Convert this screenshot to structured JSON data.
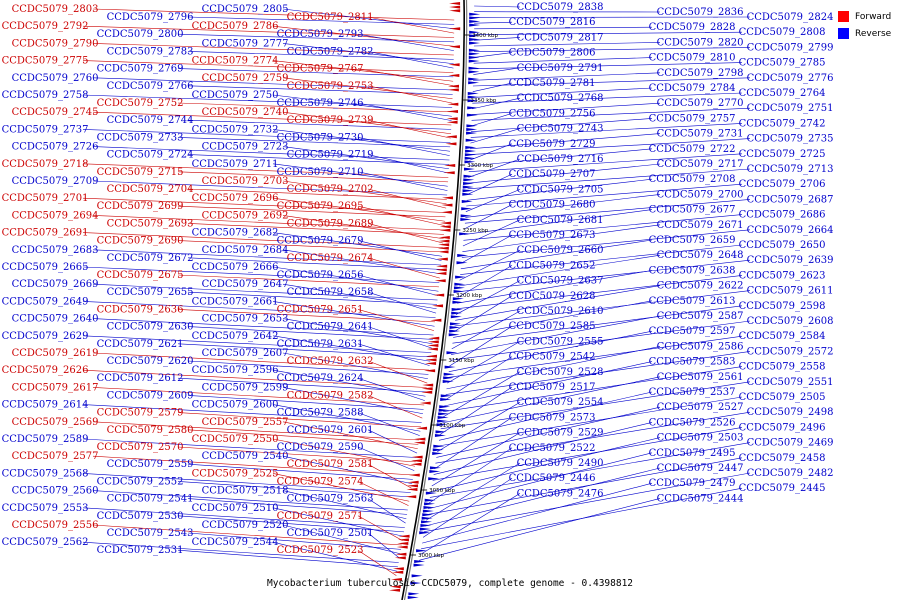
{
  "caption": "Mycobacterium tuberculosis CCDC5079, complete genome - 0.4398812",
  "legend": [
    {
      "label": "Forward",
      "color": "#ff0000"
    },
    {
      "label": "Reverse",
      "color": "#0000ff"
    }
  ],
  "colors": {
    "forward": "#cc0000",
    "reverse": "#0000cc",
    "backbone": "#000000"
  },
  "axis_ticks": [
    "3400 kbp",
    "3350 kbp",
    "3300 kbp",
    "3250 kbp",
    "3200 kbp",
    "3150 kbp",
    "3100 kbp",
    "3050 kbp",
    "3000 kbp"
  ],
  "left_labels": [
    {
      "t": "CCDC5079_2803",
      "s": "f"
    },
    {
      "t": "CCDC5079_2796",
      "s": "r"
    },
    {
      "t": "CCDC5079_2805",
      "s": "r"
    },
    {
      "t": "CCDC5079_2811",
      "s": "f"
    },
    {
      "t": "CCDC5079_2792",
      "s": "f"
    },
    {
      "t": "CCDC5079_2800",
      "s": "r"
    },
    {
      "t": "CCDC5079_2786",
      "s": "f"
    },
    {
      "t": "CCDC5079_2793",
      "s": "r"
    },
    {
      "t": "CCDC5079_2790",
      "s": "f"
    },
    {
      "t": "CCDC5079_2783",
      "s": "r"
    },
    {
      "t": "CCDC5079_2777",
      "s": "r"
    },
    {
      "t": "CCDC5079_2782",
      "s": "r"
    },
    {
      "t": "CCDC5079_2775",
      "s": "f"
    },
    {
      "t": "CCDC5079_2769",
      "s": "r"
    },
    {
      "t": "CCDC5079_2774",
      "s": "f"
    },
    {
      "t": "CCDC5079_2767",
      "s": "f"
    },
    {
      "t": "CCDC5079_2760",
      "s": "r"
    },
    {
      "t": "CCDC5079_2766",
      "s": "r"
    },
    {
      "t": "CCDC5079_2759",
      "s": "f"
    },
    {
      "t": "CCDC5079_2753",
      "s": "f"
    },
    {
      "t": "CCDC5079_2758",
      "s": "r"
    },
    {
      "t": "CCDC5079_2752",
      "s": "f"
    },
    {
      "t": "CCDC5079_2750",
      "s": "r"
    },
    {
      "t": "CCDC5079_2746",
      "s": "r"
    },
    {
      "t": "CCDC5079_2745",
      "s": "f"
    },
    {
      "t": "CCDC5079_2744",
      "s": "r"
    },
    {
      "t": "CCDC5079_2740",
      "s": "f"
    },
    {
      "t": "CCDC5079_2739",
      "s": "f"
    },
    {
      "t": "CCDC5079_2737",
      "s": "r"
    },
    {
      "t": "CCDC5079_2733",
      "s": "r"
    },
    {
      "t": "CCDC5079_2732",
      "s": "r"
    },
    {
      "t": "CCDC5079_2730",
      "s": "r"
    },
    {
      "t": "CCDC5079_2726",
      "s": "r"
    },
    {
      "t": "CCDC5079_2724",
      "s": "r"
    },
    {
      "t": "CCDC5079_2723",
      "s": "r"
    },
    {
      "t": "CCDC5079_2719",
      "s": "r"
    },
    {
      "t": "CCDC5079_2718",
      "s": "f"
    },
    {
      "t": "CCDC5079_2715",
      "s": "f"
    },
    {
      "t": "CCDC5079_2711",
      "s": "r"
    },
    {
      "t": "CCDC5079_2710",
      "s": "r"
    },
    {
      "t": "CCDC5079_2709",
      "s": "r"
    },
    {
      "t": "CCDC5079_2704",
      "s": "f"
    },
    {
      "t": "CCDC5079_2703",
      "s": "f"
    },
    {
      "t": "CCDC5079_2702",
      "s": "f"
    },
    {
      "t": "CCDC5079_2701",
      "s": "f"
    },
    {
      "t": "CCDC5079_2699",
      "s": "f"
    },
    {
      "t": "CCDC5079_2696",
      "s": "f"
    },
    {
      "t": "CCDC5079_2695",
      "s": "f"
    },
    {
      "t": "CCDC5079_2694",
      "s": "f"
    },
    {
      "t": "CCDC5079_2693",
      "s": "f"
    },
    {
      "t": "CCDC5079_2692",
      "s": "f"
    },
    {
      "t": "CCDC5079_2689",
      "s": "f"
    },
    {
      "t": "CCDC5079_2691",
      "s": "f"
    },
    {
      "t": "CCDC5079_2690",
      "s": "f"
    },
    {
      "t": "CCDC5079_2682",
      "s": "r"
    },
    {
      "t": "CCDC5079_2679",
      "s": "r"
    },
    {
      "t": "CCDC5079_2683",
      "s": "r"
    },
    {
      "t": "CCDC5079_2672",
      "s": "r"
    },
    {
      "t": "CCDC5079_2684",
      "s": "r"
    },
    {
      "t": "CCDC5079_2674",
      "s": "f"
    },
    {
      "t": "CCDC5079_2665",
      "s": "r"
    },
    {
      "t": "CCDC5079_2675",
      "s": "f"
    },
    {
      "t": "CCDC5079_2666",
      "s": "r"
    },
    {
      "t": "CCDC5079_2656",
      "s": "r"
    },
    {
      "t": "CCDC5079_2669",
      "s": "r"
    },
    {
      "t": "CCDC5079_2655",
      "s": "r"
    },
    {
      "t": "CCDC5079_2647",
      "s": "r"
    },
    {
      "t": "CCDC5079_2658",
      "s": "r"
    },
    {
      "t": "CCDC5079_2649",
      "s": "r"
    },
    {
      "t": "CCDC5079_2636",
      "s": "f"
    },
    {
      "t": "CCDC5079_2661",
      "s": "r"
    },
    {
      "t": "CCDC5079_2651",
      "s": "f"
    },
    {
      "t": "CCDC5079_2640",
      "s": "r"
    },
    {
      "t": "CCDC5079_2630",
      "s": "r"
    },
    {
      "t": "CCDC5079_2653",
      "s": "r"
    },
    {
      "t": "CCDC5079_2641",
      "s": "r"
    },
    {
      "t": "CCDC5079_2629",
      "s": "r"
    },
    {
      "t": "CCDC5079_2621",
      "s": "r"
    },
    {
      "t": "CCDC5079_2642",
      "s": "r"
    },
    {
      "t": "CCDC5079_2631",
      "s": "r"
    },
    {
      "t": "CCDC5079_2619",
      "s": "f"
    },
    {
      "t": "CCDC5079_2620",
      "s": "r"
    },
    {
      "t": "CCDC5079_2607",
      "s": "r"
    },
    {
      "t": "CCDC5079_2632",
      "s": "f"
    },
    {
      "t": "CCDC5079_2626",
      "s": "f"
    },
    {
      "t": "CCDC5079_2612",
      "s": "r"
    },
    {
      "t": "CCDC5079_2596",
      "s": "r"
    },
    {
      "t": "CCDC5079_2624",
      "s": "r"
    },
    {
      "t": "CCDC5079_2617",
      "s": "f"
    },
    {
      "t": "CCDC5079_2609",
      "s": "r"
    },
    {
      "t": "CCDC5079_2599",
      "s": "r"
    },
    {
      "t": "CCDC5079_2582",
      "s": "f"
    },
    {
      "t": "CCDC5079_2614",
      "s": "r"
    },
    {
      "t": "CCDC5079_2579",
      "s": "f"
    },
    {
      "t": "CCDC5079_2600",
      "s": "r"
    },
    {
      "t": "CCDC5079_2588",
      "s": "r"
    },
    {
      "t": "CCDC5079_2569",
      "s": "f"
    },
    {
      "t": "CCDC5079_2580",
      "s": "f"
    },
    {
      "t": "CCDC5079_2557",
      "s": "f"
    },
    {
      "t": "CCDC5079_2601",
      "s": "r"
    },
    {
      "t": "CCDC5079_2589",
      "s": "r"
    },
    {
      "t": "CCDC5079_2570",
      "s": "f"
    },
    {
      "t": "CCDC5079_2550",
      "s": "f"
    },
    {
      "t": "CCDC5079_2590",
      "s": "r"
    },
    {
      "t": "CCDC5079_2577",
      "s": "f"
    },
    {
      "t": "CCDC5079_2559",
      "s": "r"
    },
    {
      "t": "CCDC5079_2540",
      "s": "r"
    },
    {
      "t": "CCDC5079_2581",
      "s": "f"
    },
    {
      "t": "CCDC5079_2568",
      "s": "r"
    },
    {
      "t": "CCDC5079_2552",
      "s": "r"
    },
    {
      "t": "CCDC5079_2525",
      "s": "f"
    },
    {
      "t": "CCDC5079_2574",
      "s": "f"
    },
    {
      "t": "CCDC5079_2560",
      "s": "r"
    },
    {
      "t": "CCDC5079_2541",
      "s": "r"
    },
    {
      "t": "CCDC5079_2518",
      "s": "r"
    },
    {
      "t": "CCDC5079_2563",
      "s": "r"
    },
    {
      "t": "CCDC5079_2553",
      "s": "r"
    },
    {
      "t": "CCDC5079_2530",
      "s": "r"
    },
    {
      "t": "CCDC5079_2510",
      "s": "r"
    },
    {
      "t": "CCDC5079_2571",
      "s": "f"
    },
    {
      "t": "CCDC5079_2556",
      "s": "f"
    },
    {
      "t": "CCDC5079_2543",
      "s": "r"
    },
    {
      "t": "CCDC5079_2520",
      "s": "r"
    },
    {
      "t": "CCDC5079_2501",
      "s": "r"
    },
    {
      "t": "CCDC5079_2562",
      "s": "r"
    },
    {
      "t": "CCDC5079_2531",
      "s": "r"
    },
    {
      "t": "CCDC5079_2544",
      "s": "r"
    },
    {
      "t": "CCDC5079_2523",
      "s": "f"
    }
  ],
  "right_labels": [
    {
      "t": "CCDC5079_2838"
    },
    {
      "t": "CCDC5079_2836"
    },
    {
      "t": "CCDC5079_2824"
    },
    {
      "t": "CCDC5079_2816"
    },
    {
      "t": "CCDC5079_2828"
    },
    {
      "t": "CCDC5079_2808"
    },
    {
      "t": "CCDC5079_2817"
    },
    {
      "t": "CCDC5079_2820"
    },
    {
      "t": "CCDC5079_2799"
    },
    {
      "t": "CCDC5079_2806"
    },
    {
      "t": "CCDC5079_2810"
    },
    {
      "t": "CCDC5079_2785"
    },
    {
      "t": "CCDC5079_2791"
    },
    {
      "t": "CCDC5079_2798"
    },
    {
      "t": "CCDC5079_2776"
    },
    {
      "t": "CCDC5079_2781"
    },
    {
      "t": "CCDC5079_2784"
    },
    {
      "t": "CCDC5079_2764"
    },
    {
      "t": "CCDC5079_2768"
    },
    {
      "t": "CCDC5079_2770"
    },
    {
      "t": "CCDC5079_2751"
    },
    {
      "t": "CCDC5079_2756"
    },
    {
      "t": "CCDC5079_2757"
    },
    {
      "t": "CCDC5079_2742"
    },
    {
      "t": "CCDC5079_2743"
    },
    {
      "t": "CCDC5079_2731"
    },
    {
      "t": "CCDC5079_2735"
    },
    {
      "t": "CCDC5079_2729"
    },
    {
      "t": "CCDC5079_2722"
    },
    {
      "t": "CCDC5079_2725"
    },
    {
      "t": "CCDC5079_2716"
    },
    {
      "t": "CCDC5079_2717"
    },
    {
      "t": "CCDC5079_2713"
    },
    {
      "t": "CCDC5079_2707"
    },
    {
      "t": "CCDC5079_2708"
    },
    {
      "t": "CCDC5079_2706"
    },
    {
      "t": "CCDC5079_2705"
    },
    {
      "t": "CCDC5079_2700"
    },
    {
      "t": "CCDC5079_2687"
    },
    {
      "t": "CCDC5079_2680"
    },
    {
      "t": "CCDC5079_2677"
    },
    {
      "t": "CCDC5079_2686"
    },
    {
      "t": "CCDC5079_2681"
    },
    {
      "t": "CCDC5079_2671"
    },
    {
      "t": "CCDC5079_2664"
    },
    {
      "t": "CCDC5079_2673"
    },
    {
      "t": "CCDC5079_2659"
    },
    {
      "t": "CCDC5079_2650"
    },
    {
      "t": "CCDC5079_2660"
    },
    {
      "t": "CCDC5079_2648"
    },
    {
      "t": "CCDC5079_2639"
    },
    {
      "t": "CCDC5079_2652"
    },
    {
      "t": "CCDC5079_2638"
    },
    {
      "t": "CCDC5079_2623"
    },
    {
      "t": "CCDC5079_2637"
    },
    {
      "t": "CCDC5079_2622"
    },
    {
      "t": "CCDC5079_2611"
    },
    {
      "t": "CCDC5079_2628"
    },
    {
      "t": "CCDC5079_2613"
    },
    {
      "t": "CCDC5079_2598"
    },
    {
      "t": "CCDC5079_2610"
    },
    {
      "t": "CCDC5079_2587"
    },
    {
      "t": "CCDC5079_2608"
    },
    {
      "t": "CCDC5079_2585"
    },
    {
      "t": "CCDC5079_2597"
    },
    {
      "t": "CCDC5079_2584"
    },
    {
      "t": "CCDC5079_2555"
    },
    {
      "t": "CCDC5079_2586"
    },
    {
      "t": "CCDC5079_2572"
    },
    {
      "t": "CCDC5079_2542"
    },
    {
      "t": "CCDC5079_2583"
    },
    {
      "t": "CCDC5079_2558"
    },
    {
      "t": "CCDC5079_2528"
    },
    {
      "t": "CCDC5079_2561"
    },
    {
      "t": "CCDC5079_2551"
    },
    {
      "t": "CCDC5079_2517"
    },
    {
      "t": "CCDC5079_2537"
    },
    {
      "t": "CCDC5079_2505"
    },
    {
      "t": "CCDC5079_2554"
    },
    {
      "t": "CCDC5079_2527"
    },
    {
      "t": "CCDC5079_2498"
    },
    {
      "t": "CCDC5079_2573"
    },
    {
      "t": "CCDC5079_2526"
    },
    {
      "t": "CCDC5079_2496"
    },
    {
      "t": "CCDC5079_2529"
    },
    {
      "t": "CCDC5079_2503"
    },
    {
      "t": "CCDC5079_2469"
    },
    {
      "t": "CCDC5079_2522"
    },
    {
      "t": "CCDC5079_2495"
    },
    {
      "t": "CCDC5079_2458"
    },
    {
      "t": "CCDC5079_2490"
    },
    {
      "t": "CCDC5079_2447"
    },
    {
      "t": "CCDC5079_2482"
    },
    {
      "t": "CCDC5079_2446"
    },
    {
      "t": "CCDC5079_2479"
    },
    {
      "t": "CCDC5079_2445"
    },
    {
      "t": "CCDC5079_2476"
    },
    {
      "t": "CCDC5079_2444"
    }
  ]
}
